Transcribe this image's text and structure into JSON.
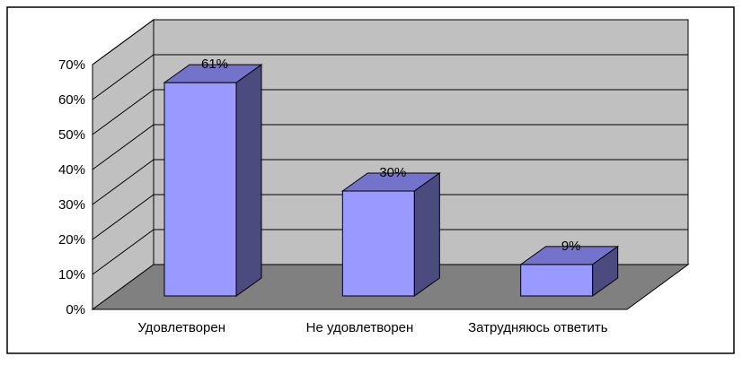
{
  "chart_data": {
    "type": "bar",
    "title": "",
    "xlabel": "",
    "ylabel": "",
    "categories": [
      "Удовлетворен",
      "Не удовлетворен",
      "Затрудняюсь ответить"
    ],
    "values": [
      61,
      30,
      9
    ],
    "data_labels": [
      "61%",
      "30%",
      "9%"
    ],
    "ylim": [
      0,
      70
    ],
    "yticks": [
      "0%",
      "10%",
      "20%",
      "30%",
      "40%",
      "50%",
      "60%",
      "70%"
    ],
    "grid": true,
    "legend": "none",
    "style": "3d",
    "colors": {
      "bar_front": "#9999ff",
      "bar_top": "#7373cc",
      "bar_side": "#4b4b80",
      "back_wall": "#c0c0c0",
      "side_wall": "#c0c0c0",
      "floor": "#808080"
    }
  }
}
